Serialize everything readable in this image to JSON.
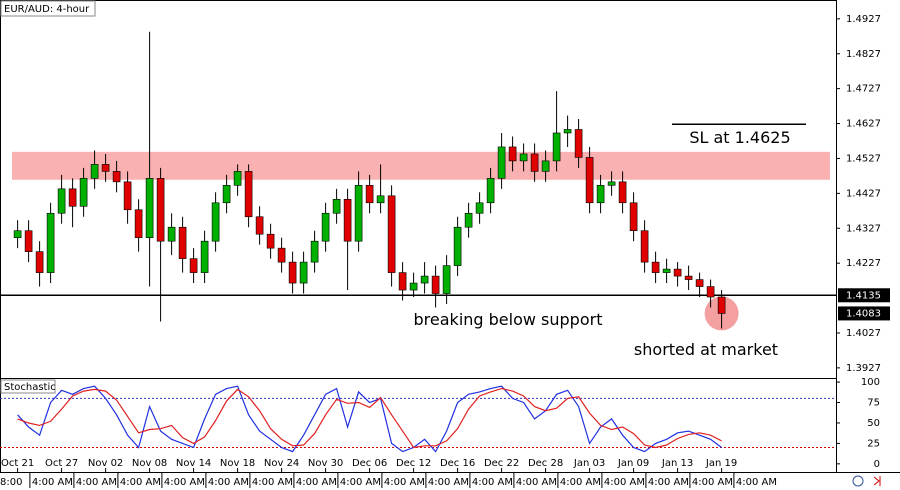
{
  "chart_data": [
    {
      "type": "candlestick",
      "title": "EUR/AUD: 4-hour",
      "xlim": [
        -1.6,
        74.4
      ],
      "ylim": [
        1.3898,
        1.4981
      ],
      "yticks": [
        1.4927,
        1.4827,
        1.4727,
        1.4627,
        1.4527,
        1.4427,
        1.4327,
        1.4227,
        1.4027,
        1.3927
      ],
      "up_color": "#00b000",
      "down_color": "#e00000",
      "open": [
        1.43,
        1.432,
        1.426,
        1.42,
        1.437,
        1.444,
        1.439,
        1.447,
        1.451,
        1.449,
        1.446,
        1.438,
        1.43,
        1.447,
        1.429,
        1.433,
        1.424,
        1.42,
        1.429,
        1.44,
        1.445,
        1.449,
        1.436,
        1.431,
        1.427,
        1.423,
        1.417,
        1.423,
        1.429,
        1.437,
        1.441,
        1.429,
        1.445,
        1.44,
        1.442,
        1.42,
        1.415,
        1.417,
        1.419,
        1.414,
        1.422,
        1.433,
        1.437,
        1.44,
        1.447,
        1.456,
        1.452,
        1.454,
        1.449,
        1.452,
        1.46,
        1.461,
        1.453,
        1.44,
        1.445,
        1.446,
        1.44,
        1.432,
        1.423,
        1.42,
        1.421,
        1.419,
        1.418,
        1.416,
        1.413
      ],
      "high": [
        1.435,
        1.435,
        1.429,
        1.44,
        1.448,
        1.447,
        1.45,
        1.455,
        1.454,
        1.452,
        1.449,
        1.441,
        1.489,
        1.45,
        1.437,
        1.436,
        1.427,
        1.432,
        1.443,
        1.448,
        1.451,
        1.451,
        1.439,
        1.434,
        1.43,
        1.426,
        1.426,
        1.432,
        1.44,
        1.444,
        1.444,
        1.449,
        1.448,
        1.451,
        1.445,
        1.423,
        1.42,
        1.423,
        1.422,
        1.425,
        1.436,
        1.44,
        1.443,
        1.45,
        1.46,
        1.459,
        1.457,
        1.457,
        1.455,
        1.472,
        1.465,
        1.464,
        1.456,
        1.448,
        1.449,
        1.449,
        1.443,
        1.435,
        1.426,
        1.424,
        1.423,
        1.422,
        1.42,
        1.418,
        1.415
      ],
      "low": [
        1.427,
        1.423,
        1.416,
        1.417,
        1.434,
        1.433,
        1.436,
        1.444,
        1.446,
        1.443,
        1.434,
        1.426,
        1.416,
        1.406,
        1.425,
        1.42,
        1.417,
        1.417,
        1.426,
        1.437,
        1.442,
        1.433,
        1.428,
        1.424,
        1.42,
        1.414,
        1.414,
        1.42,
        1.426,
        1.434,
        1.415,
        1.426,
        1.437,
        1.437,
        1.416,
        1.412,
        1.413,
        1.414,
        1.41,
        1.411,
        1.419,
        1.43,
        1.434,
        1.437,
        1.444,
        1.449,
        1.449,
        1.446,
        1.446,
        1.449,
        1.456,
        1.45,
        1.437,
        1.437,
        1.442,
        1.437,
        1.429,
        1.42,
        1.417,
        1.417,
        1.416,
        1.415,
        1.413,
        1.41,
        1.404
      ],
      "close": [
        1.432,
        1.426,
        1.42,
        1.437,
        1.444,
        1.439,
        1.447,
        1.451,
        1.449,
        1.446,
        1.438,
        1.43,
        1.447,
        1.429,
        1.433,
        1.424,
        1.42,
        1.429,
        1.44,
        1.445,
        1.449,
        1.436,
        1.431,
        1.427,
        1.423,
        1.417,
        1.423,
        1.429,
        1.437,
        1.441,
        1.429,
        1.445,
        1.44,
        1.442,
        1.42,
        1.415,
        1.417,
        1.419,
        1.414,
        1.422,
        1.433,
        1.437,
        1.44,
        1.447,
        1.456,
        1.452,
        1.454,
        1.449,
        1.452,
        1.46,
        1.461,
        1.453,
        1.44,
        1.445,
        1.446,
        1.44,
        1.432,
        1.423,
        1.42,
        1.421,
        1.419,
        1.418,
        1.416,
        1.413,
        1.4083
      ],
      "resistance_zone": [
        1.4466,
        1.4546
      ],
      "zone_color": "#f8a8a8",
      "support": {
        "value": 1.4135,
        "label": "1.4135"
      },
      "last_price": {
        "value": 1.4083,
        "label": "1.4083"
      },
      "stop_loss": {
        "value": 1.4625,
        "label": "SL at 1.4625"
      },
      "annotations": [
        "breaking below support",
        "shorted at market"
      ],
      "marker_color": "#f4a0a0"
    },
    {
      "type": "line",
      "title": "Stochastic",
      "xlim": [
        -1.6,
        74.4
      ],
      "ylim": [
        -10,
        105
      ],
      "yticks": [
        0,
        25,
        50,
        75,
        100
      ],
      "levels": [
        {
          "value": 80,
          "color": "#3030c0"
        },
        {
          "value": 20,
          "color": "#d00000"
        }
      ],
      "series": [
        {
          "color": "#2030e0",
          "values": [
            60,
            45,
            35,
            75,
            90,
            85,
            92,
            95,
            80,
            60,
            35,
            20,
            70,
            40,
            30,
            25,
            20,
            55,
            85,
            92,
            95,
            60,
            40,
            30,
            20,
            15,
            35,
            60,
            85,
            92,
            45,
            88,
            75,
            80,
            25,
            15,
            20,
            30,
            15,
            40,
            75,
            85,
            88,
            92,
            95,
            80,
            75,
            55,
            65,
            85,
            90,
            70,
            25,
            45,
            55,
            35,
            20,
            15,
            25,
            30,
            38,
            40,
            35,
            30,
            20
          ]
        },
        {
          "color": "#e02020",
          "values": [
            55,
            50,
            47,
            52,
            67,
            83,
            89,
            91,
            89,
            78,
            58,
            38,
            42,
            43,
            47,
            32,
            25,
            33,
            53,
            77,
            91,
            82,
            65,
            43,
            30,
            22,
            23,
            37,
            60,
            79,
            74,
            75,
            69,
            81,
            60,
            40,
            20,
            22,
            22,
            28,
            43,
            67,
            83,
            88,
            92,
            89,
            83,
            70,
            65,
            68,
            80,
            82,
            62,
            47,
            42,
            45,
            37,
            23,
            20,
            23,
            31,
            36,
            38,
            35,
            28
          ]
        }
      ],
      "xticks": [
        {
          "value": 0,
          "label": "Oct 21"
        },
        {
          "value": 4,
          "label": "Oct 27"
        },
        {
          "value": 8,
          "label": "Nov 02"
        },
        {
          "value": 12,
          "label": "Nov 08"
        },
        {
          "value": 16,
          "label": "Nov 14"
        },
        {
          "value": 20,
          "label": "Nov 18"
        },
        {
          "value": 24,
          "label": "Nov 24"
        },
        {
          "value": 28,
          "label": "Nov 30"
        },
        {
          "value": 32,
          "label": "Dec 06"
        },
        {
          "value": 36,
          "label": "Dec 12"
        },
        {
          "value": 40,
          "label": "Dec 16"
        },
        {
          "value": 44,
          "label": "Dec 22"
        },
        {
          "value": 48,
          "label": "Dec 28"
        },
        {
          "value": 52,
          "label": "Jan 03"
        },
        {
          "value": 56,
          "label": "Jan 09"
        },
        {
          "value": 60,
          "label": "Jan 13"
        },
        {
          "value": 64,
          "label": "Jan 19"
        }
      ],
      "x2ticks": [
        {
          "value": -1.6,
          "label": "8:00"
        },
        {
          "value": 1.3,
          "label": "4:00 AM"
        },
        {
          "value": 5.3,
          "label": "4:00 AM"
        },
        {
          "value": 9.3,
          "label": "4:00 AM"
        },
        {
          "value": 13.3,
          "label": "4:00 AM"
        },
        {
          "value": 17.3,
          "label": "4:00 AM"
        },
        {
          "value": 21.3,
          "label": "4:00 AM"
        },
        {
          "value": 25.3,
          "label": "4:00 AM"
        },
        {
          "value": 29.3,
          "label": "4:00 AM"
        },
        {
          "value": 33.3,
          "label": "4:00 AM"
        },
        {
          "value": 37.3,
          "label": "4:00 AM"
        },
        {
          "value": 41.3,
          "label": "4:00 AM"
        },
        {
          "value": 45.3,
          "label": "4:00 AM"
        },
        {
          "value": 49.3,
          "label": "4:00 AM"
        },
        {
          "value": 53.3,
          "label": "4:00 AM"
        },
        {
          "value": 57.3,
          "label": "4:00 AM"
        },
        {
          "value": 61.3,
          "label": "4:00 AM"
        },
        {
          "value": 65.3,
          "label": "4:00 AM"
        }
      ]
    }
  ]
}
